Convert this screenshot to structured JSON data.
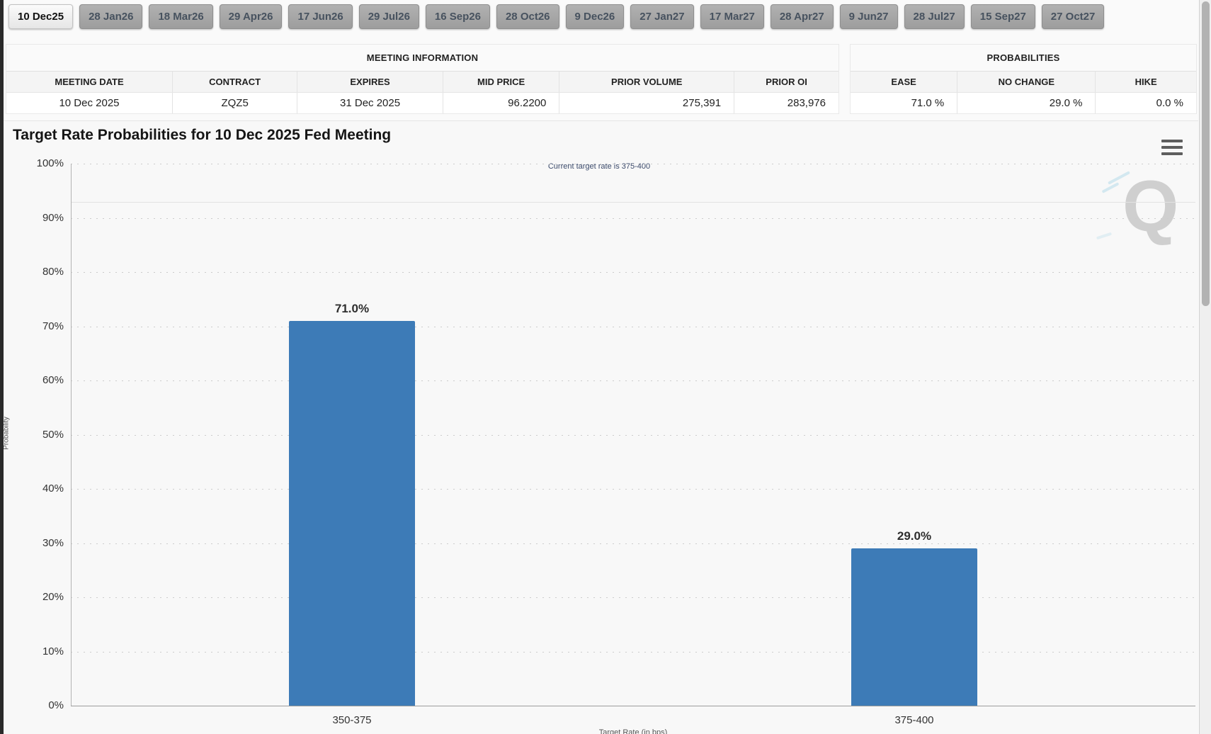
{
  "tabs": {
    "items": [
      {
        "label": "10 Dec25",
        "selected": true
      },
      {
        "label": "28 Jan26",
        "selected": false
      },
      {
        "label": "18 Mar26",
        "selected": false
      },
      {
        "label": "29 Apr26",
        "selected": false
      },
      {
        "label": "17 Jun26",
        "selected": false
      },
      {
        "label": "29 Jul26",
        "selected": false
      },
      {
        "label": "16 Sep26",
        "selected": false
      },
      {
        "label": "28 Oct26",
        "selected": false
      },
      {
        "label": "9 Dec26",
        "selected": false
      },
      {
        "label": "27 Jan27",
        "selected": false
      },
      {
        "label": "17 Mar27",
        "selected": false
      },
      {
        "label": "28 Apr27",
        "selected": false
      },
      {
        "label": "9 Jun27",
        "selected": false
      },
      {
        "label": "28 Jul27",
        "selected": false
      },
      {
        "label": "15 Sep27",
        "selected": false
      },
      {
        "label": "27 Oct27",
        "selected": false
      }
    ]
  },
  "meeting_info": {
    "title": "MEETING INFORMATION",
    "columns": [
      "MEETING DATE",
      "CONTRACT",
      "EXPIRES",
      "MID PRICE",
      "PRIOR VOLUME",
      "PRIOR OI"
    ],
    "values": [
      "10 Dec 2025",
      "ZQZ5",
      "31 Dec 2025",
      "96.2200",
      "275,391",
      "283,976"
    ]
  },
  "probabilities": {
    "title": "PROBABILITIES",
    "columns": [
      "EASE",
      "NO CHANGE",
      "HIKE"
    ],
    "values": [
      "71.0 %",
      "29.0 %",
      "0.0 %"
    ]
  },
  "chart": {
    "watermark_text": "Q"
  },
  "chart_data": {
    "type": "bar",
    "title": "Target Rate Probabilities for 10 Dec 2025 Fed Meeting",
    "annotation": "Current target rate is 375-400",
    "categories": [
      "350-375",
      "375-400"
    ],
    "values": [
      71.0,
      29.0
    ],
    "value_labels": [
      "71.0%",
      "29.0%"
    ],
    "xlabel": "Target Rate (in bps)",
    "ylabel": "Probability",
    "ylim": [
      0,
      100
    ],
    "ytick_step": 10,
    "ytick_suffix": "%",
    "grid": "dotted",
    "legend": "none",
    "bar_color": "#3d7bb7",
    "solid_reference_line_pct": 93
  }
}
